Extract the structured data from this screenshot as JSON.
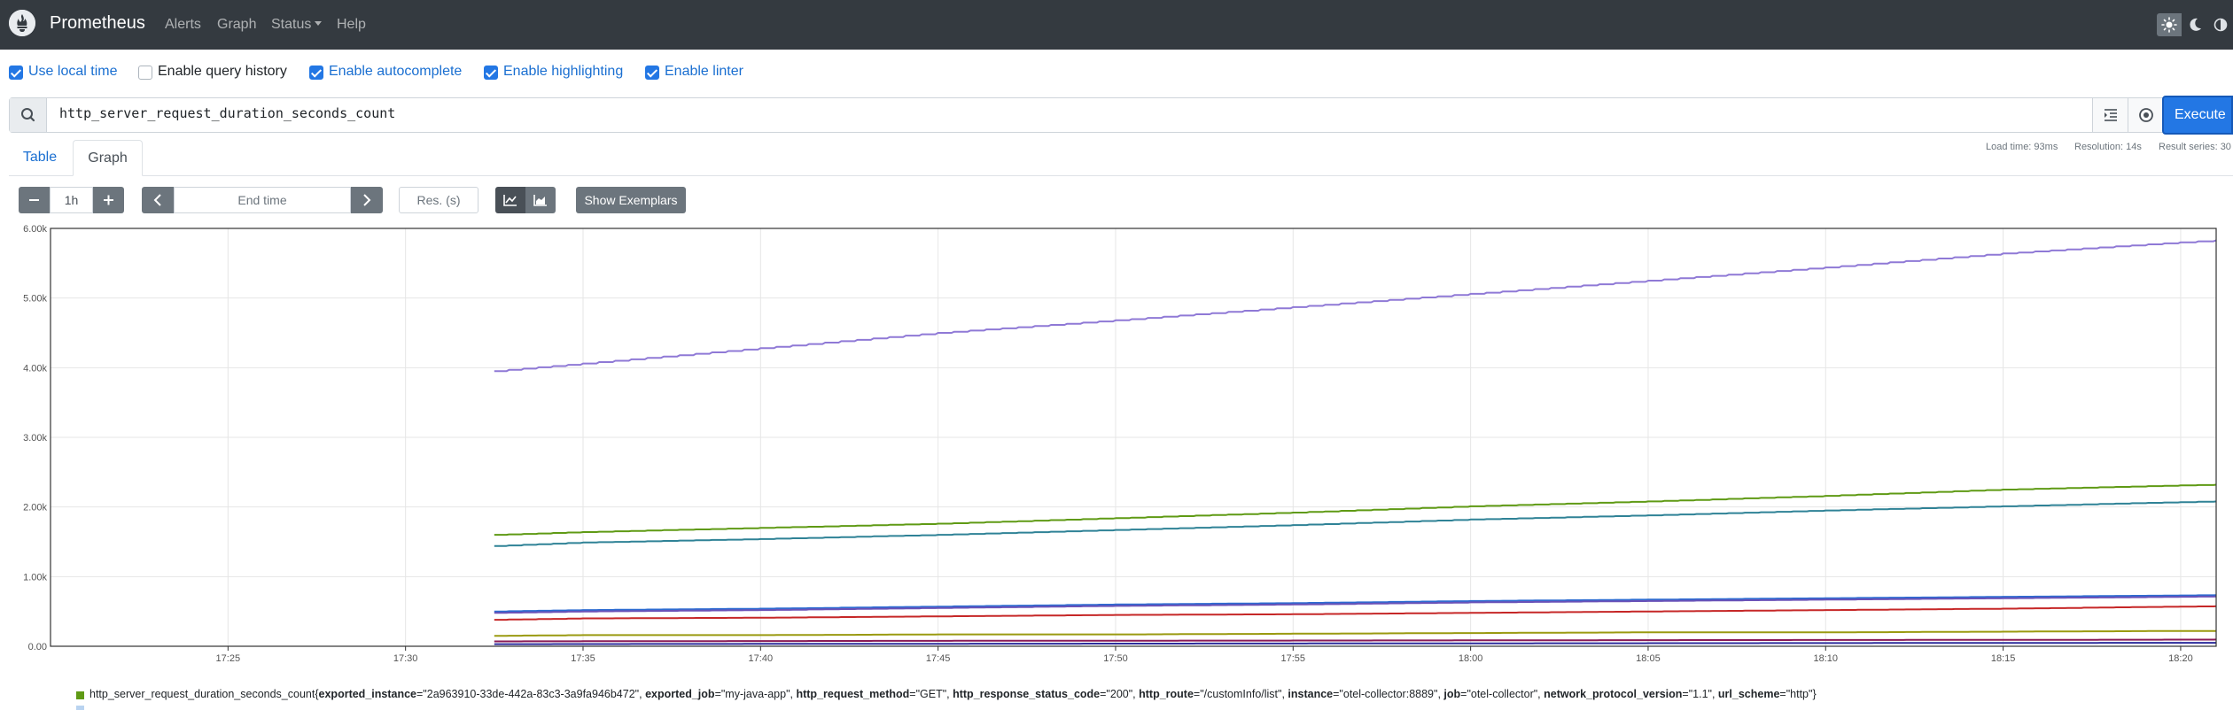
{
  "navbar": {
    "brand": "Prometheus",
    "links": [
      "Alerts",
      "Graph",
      "Status",
      "Help"
    ],
    "theme_icons": [
      "sun-icon",
      "moon-icon",
      "half-circle-icon"
    ]
  },
  "options": [
    {
      "label": "Use local time",
      "checked": true
    },
    {
      "label": "Enable query history",
      "checked": false
    },
    {
      "label": "Enable autocomplete",
      "checked": true
    },
    {
      "label": "Enable highlighting",
      "checked": true
    },
    {
      "label": "Enable linter",
      "checked": true
    }
  ],
  "query": {
    "expression": "http_server_request_duration_seconds_count",
    "execute_label": "Execute"
  },
  "stats": {
    "load_time": "Load time: 93ms",
    "resolution": "Resolution: 14s",
    "result_series": "Result series: 30"
  },
  "tabs": [
    "Table",
    "Graph"
  ],
  "controls": {
    "minus": "−",
    "range": "1h",
    "plus": "+",
    "end_time_placeholder": "End time",
    "resolution_placeholder": "Res. (s)",
    "exemplars_label": "Show Exemplars"
  },
  "chart_data": {
    "type": "line",
    "x": [
      "17:32:30",
      "17:35",
      "17:40",
      "17:45",
      "17:50",
      "17:55",
      "18:00",
      "18:05",
      "18:10",
      "18:15",
      "18:20",
      "18:21"
    ],
    "x_ticks": [
      "17:25",
      "17:30",
      "17:35",
      "17:40",
      "17:45",
      "17:50",
      "17:55",
      "18:00",
      "18:05",
      "18:10",
      "18:15",
      "18:20"
    ],
    "y_ticks": [
      "0.00",
      "1.00k",
      "2.00k",
      "3.00k",
      "4.00k",
      "5.00k",
      "6.00k"
    ],
    "ylim": [
      0,
      6000
    ],
    "grid": true,
    "series": [
      {
        "color": "#8f79d6",
        "values": [
          3950,
          4060,
          4280,
          4500,
          4680,
          4870,
          5060,
          5250,
          5440,
          5640,
          5800,
          5830
        ]
      },
      {
        "color": "#5f9a14",
        "values": [
          1600,
          1640,
          1700,
          1760,
          1840,
          1920,
          2010,
          2080,
          2160,
          2250,
          2310,
          2320
        ]
      },
      {
        "color": "#2f8296",
        "values": [
          1440,
          1490,
          1540,
          1600,
          1670,
          1740,
          1820,
          1880,
          1950,
          2010,
          2070,
          2080
        ]
      },
      {
        "color": "#2c6bd1",
        "values": [
          500,
          520,
          540,
          570,
          600,
          620,
          650,
          670,
          690,
          710,
          730,
          735
        ]
      },
      {
        "color": "#6a52b8",
        "values": [
          480,
          500,
          520,
          550,
          580,
          600,
          630,
          650,
          670,
          690,
          710,
          715
        ]
      },
      {
        "color": "#c62727",
        "values": [
          380,
          400,
          410,
          430,
          450,
          460,
          480,
          500,
          520,
          540,
          570,
          575
        ]
      },
      {
        "color": "#9a9a10",
        "values": [
          150,
          160,
          160,
          170,
          170,
          180,
          190,
          200,
          200,
          210,
          220,
          220
        ]
      },
      {
        "color": "#8a1a56",
        "values": [
          70,
          72,
          75,
          78,
          80,
          82,
          85,
          88,
          90,
          92,
          95,
          96
        ]
      },
      {
        "color": "#2d2d9c",
        "values": [
          30,
          32,
          34,
          36,
          38,
          40,
          42,
          44,
          46,
          48,
          50,
          50
        ]
      }
    ]
  },
  "legend": {
    "color": "#5f9a14",
    "metric": "http_server_request_duration_seconds_count",
    "labels": [
      {
        "key": "exported_instance",
        "value": "\"2a963910-33de-442a-83c3-3a9fa946b472\""
      },
      {
        "key": "exported_job",
        "value": "\"my-java-app\""
      },
      {
        "key": "http_request_method",
        "value": "\"GET\""
      },
      {
        "key": "http_response_status_code",
        "value": "\"200\""
      },
      {
        "key": "http_route",
        "value": "\"/customInfo/list\""
      },
      {
        "key": "instance",
        "value": "\"otel-collector:8889\""
      },
      {
        "key": "job",
        "value": "\"otel-collector\""
      },
      {
        "key": "network_protocol_version",
        "value": "\"1.1\""
      },
      {
        "key": "url_scheme",
        "value": "\"http\""
      }
    ]
  }
}
